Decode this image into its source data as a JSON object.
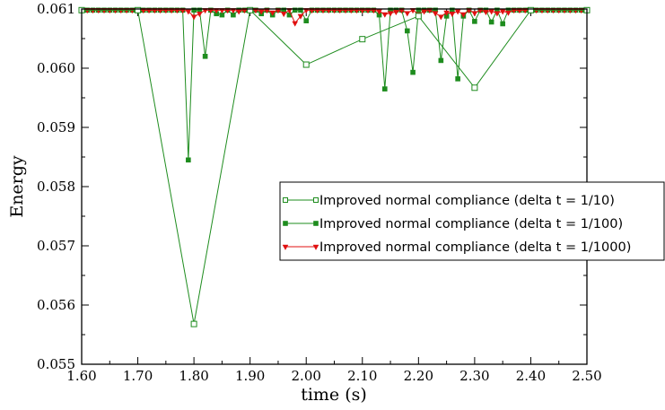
{
  "chart_data": {
    "type": "line",
    "xlabel": "time (s)",
    "ylabel": "Energy",
    "xlim": [
      1.6,
      2.5
    ],
    "ylim": [
      0.055,
      0.061
    ],
    "x_ticks": [
      1.6,
      1.7,
      1.8,
      1.9,
      2.0,
      2.1,
      2.2,
      2.3,
      2.4,
      2.5
    ],
    "x_tick_labels": [
      "1.60",
      "1.70",
      "1.80",
      "1.90",
      "2.00",
      "2.10",
      "2.20",
      "2.30",
      "2.40",
      "2.50"
    ],
    "y_ticks": [
      0.055,
      0.056,
      0.057,
      0.058,
      0.059,
      0.06,
      0.061
    ],
    "y_tick_labels": [
      "0.055",
      "0.056",
      "0.057",
      "0.058",
      "0.059",
      "0.060",
      "0.061"
    ],
    "legend_position": "center-right",
    "series": [
      {
        "name": "Improved normal compliance (delta t = 1/10)",
        "color": "#1e8c1e",
        "marker": "open-square",
        "x": [
          1.6,
          1.7,
          1.8,
          1.9,
          2.0,
          2.1,
          2.2,
          2.3,
          2.4,
          2.5
        ],
        "y": [
          0.06098,
          0.06098,
          0.05568,
          0.06098,
          0.06006,
          0.06049,
          0.06088,
          0.05967,
          0.06098,
          0.06098
        ]
      },
      {
        "name": "Improved normal compliance (delta t = 1/100)",
        "color": "#1e8c1e",
        "marker": "filled-square",
        "x": [
          1.6,
          1.61,
          1.62,
          1.63,
          1.64,
          1.65,
          1.66,
          1.67,
          1.68,
          1.69,
          1.7,
          1.71,
          1.72,
          1.73,
          1.74,
          1.75,
          1.76,
          1.77,
          1.78,
          1.79,
          1.8,
          1.81,
          1.82,
          1.83,
          1.84,
          1.85,
          1.86,
          1.87,
          1.88,
          1.89,
          1.9,
          1.91,
          1.92,
          1.93,
          1.94,
          1.95,
          1.96,
          1.97,
          1.98,
          1.99,
          2.0,
          2.01,
          2.02,
          2.03,
          2.04,
          2.05,
          2.06,
          2.07,
          2.08,
          2.09,
          2.1,
          2.11,
          2.12,
          2.13,
          2.14,
          2.15,
          2.16,
          2.17,
          2.18,
          2.19,
          2.2,
          2.21,
          2.22,
          2.23,
          2.24,
          2.25,
          2.26,
          2.27,
          2.28,
          2.29,
          2.3,
          2.31,
          2.32,
          2.33,
          2.34,
          2.35,
          2.36,
          2.37,
          2.38,
          2.39,
          2.4,
          2.41,
          2.42,
          2.43,
          2.44,
          2.45,
          2.46,
          2.47,
          2.48,
          2.49,
          2.5
        ],
        "y": [
          0.06098,
          0.06098,
          0.06098,
          0.06098,
          0.06098,
          0.06098,
          0.06098,
          0.06098,
          0.06098,
          0.06098,
          0.06098,
          0.06098,
          0.06098,
          0.06098,
          0.06098,
          0.06098,
          0.06098,
          0.06098,
          0.06098,
          0.05845,
          0.06098,
          0.06098,
          0.0602,
          0.06098,
          0.06092,
          0.0609,
          0.06098,
          0.0609,
          0.06098,
          0.06098,
          0.06098,
          0.06098,
          0.06092,
          0.06098,
          0.0609,
          0.06098,
          0.06098,
          0.0609,
          0.06098,
          0.06098,
          0.0608,
          0.06098,
          0.06098,
          0.06098,
          0.06098,
          0.06098,
          0.06098,
          0.06098,
          0.06098,
          0.06098,
          0.06098,
          0.06098,
          0.06098,
          0.0609,
          0.05965,
          0.06098,
          0.06098,
          0.06098,
          0.06063,
          0.05993,
          0.06098,
          0.06098,
          0.06098,
          0.06098,
          0.06013,
          0.06088,
          0.06098,
          0.05982,
          0.06088,
          0.06098,
          0.06079,
          0.06098,
          0.06098,
          0.06078,
          0.06098,
          0.06075,
          0.06098,
          0.06098,
          0.06098,
          0.06098,
          0.06098,
          0.06098,
          0.06098,
          0.06098,
          0.06098,
          0.06098,
          0.06098,
          0.06098,
          0.06098,
          0.06098,
          0.06098
        ]
      },
      {
        "name": "Improved normal compliance (delta t = 1/1000)",
        "color": "#e01010",
        "marker": "filled-triangle-down",
        "x": [
          1.6,
          1.61,
          1.62,
          1.63,
          1.64,
          1.65,
          1.66,
          1.67,
          1.68,
          1.69,
          1.7,
          1.71,
          1.72,
          1.73,
          1.74,
          1.75,
          1.76,
          1.77,
          1.78,
          1.79,
          1.8,
          1.81,
          1.82,
          1.83,
          1.84,
          1.85,
          1.86,
          1.87,
          1.88,
          1.89,
          1.9,
          1.91,
          1.92,
          1.93,
          1.94,
          1.95,
          1.96,
          1.97,
          1.98,
          1.99,
          2.0,
          2.01,
          2.02,
          2.03,
          2.04,
          2.05,
          2.06,
          2.07,
          2.08,
          2.09,
          2.1,
          2.11,
          2.12,
          2.13,
          2.14,
          2.15,
          2.16,
          2.17,
          2.18,
          2.19,
          2.2,
          2.21,
          2.22,
          2.23,
          2.24,
          2.25,
          2.26,
          2.27,
          2.28,
          2.29,
          2.3,
          2.31,
          2.32,
          2.33,
          2.34,
          2.35,
          2.36,
          2.37,
          2.38,
          2.39,
          2.4,
          2.41,
          2.42,
          2.43,
          2.44,
          2.45,
          2.46,
          2.47,
          2.48,
          2.49,
          2.5
        ],
        "y": [
          0.06098,
          0.06098,
          0.06098,
          0.06098,
          0.06098,
          0.06098,
          0.06098,
          0.06098,
          0.06098,
          0.06098,
          0.06098,
          0.06098,
          0.06098,
          0.06098,
          0.06098,
          0.06098,
          0.06098,
          0.06098,
          0.06098,
          0.06096,
          0.06087,
          0.06092,
          0.06098,
          0.06098,
          0.06098,
          0.06098,
          0.06098,
          0.06098,
          0.06096,
          0.06098,
          0.06098,
          0.06098,
          0.06096,
          0.06098,
          0.06094,
          0.06098,
          0.06092,
          0.06098,
          0.06076,
          0.06088,
          0.06098,
          0.06098,
          0.06098,
          0.06098,
          0.06098,
          0.06098,
          0.06098,
          0.06098,
          0.06098,
          0.06098,
          0.06098,
          0.06098,
          0.06098,
          0.06096,
          0.06091,
          0.06093,
          0.06095,
          0.06098,
          0.06093,
          0.06098,
          0.06091,
          0.06096,
          0.06098,
          0.06093,
          0.06087,
          0.06094,
          0.06092,
          0.06096,
          0.06091,
          0.06098,
          0.06093,
          0.06098,
          0.06095,
          0.06096,
          0.06093,
          0.06096,
          0.06094,
          0.06098,
          0.06098,
          0.06098,
          0.06098,
          0.06098,
          0.06098,
          0.06098,
          0.06098,
          0.06098,
          0.06098,
          0.06098,
          0.06098,
          0.06098,
          0.06098
        ]
      }
    ]
  }
}
